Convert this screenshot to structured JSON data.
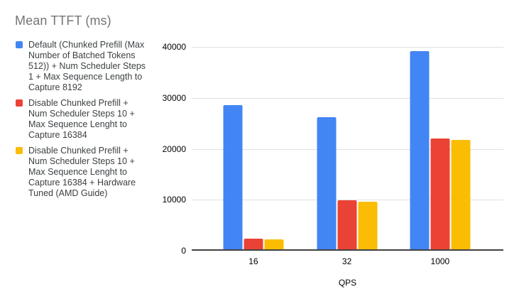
{
  "chart_data": {
    "type": "bar",
    "title": "Mean TTFT (ms)",
    "xlabel": "QPS",
    "ylabel": "",
    "categories": [
      "16",
      "32",
      "1000"
    ],
    "series": [
      {
        "name": "Default (Chunked Prefill (Max\nNumber of Batched Tokens\n512)) + Num Scheduler Steps\n1 + Max Sequence Length to\nCapture 8192",
        "color": "#4285F4",
        "values": [
          28300,
          25900,
          38900
        ]
      },
      {
        "name": "Disable Chunked Prefill +\nNum Scheduler Steps 10 +\nMax Sequence Lenght to\nCapture 16384",
        "color": "#EA4335",
        "values": [
          2100,
          9600,
          21800
        ]
      },
      {
        "name": "Disable Chunked Prefill +\nNum Scheduler Steps 10 +\nMax Sequence Lenght to\nCapture 16384 + Hardware\nTuned (AMD Guide)",
        "color": "#FBBC04",
        "values": [
          2000,
          9400,
          21500
        ]
      }
    ],
    "ylim": [
      0,
      40000
    ],
    "yticks": [
      0,
      10000,
      20000,
      30000,
      40000
    ],
    "grid": true,
    "legend_position": "left",
    "title_color": "#757575",
    "axis_line_color": "#424242",
    "gridline_color": "#e0e0e0"
  }
}
